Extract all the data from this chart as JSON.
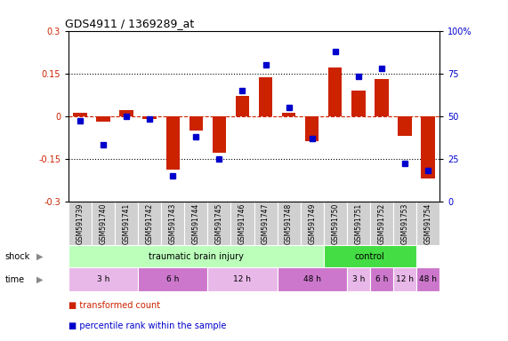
{
  "title": "GDS4911 / 1369289_at",
  "samples": [
    "GSM591739",
    "GSM591740",
    "GSM591741",
    "GSM591742",
    "GSM591743",
    "GSM591744",
    "GSM591745",
    "GSM591746",
    "GSM591747",
    "GSM591748",
    "GSM591749",
    "GSM591750",
    "GSM591751",
    "GSM591752",
    "GSM591753",
    "GSM591754"
  ],
  "red_bars": [
    0.01,
    -0.02,
    0.02,
    -0.01,
    -0.19,
    -0.05,
    -0.13,
    0.07,
    0.135,
    0.01,
    -0.09,
    0.17,
    0.09,
    0.13,
    -0.07,
    -0.22
  ],
  "blue_dots": [
    47,
    33,
    50,
    48,
    15,
    38,
    25,
    65,
    80,
    55,
    37,
    88,
    73,
    78,
    22,
    18
  ],
  "ylim_left": [
    -0.3,
    0.3
  ],
  "ylim_right": [
    0,
    100
  ],
  "yticks_left": [
    -0.3,
    -0.15,
    0.0,
    0.15,
    0.3
  ],
  "yticks_right": [
    0,
    25,
    50,
    75,
    100
  ],
  "hlines": [
    0.15,
    0.0,
    -0.15
  ],
  "red_color": "#cc2200",
  "blue_color": "#0000cc",
  "shock_groups": [
    {
      "label": "traumatic brain injury",
      "start": 0,
      "end": 11,
      "color": "#bbffbb"
    },
    {
      "label": "control",
      "start": 11,
      "end": 15,
      "color": "#44dd44"
    }
  ],
  "time_groups": [
    {
      "label": "3 h",
      "start": 0,
      "end": 3,
      "color": "#e8b8e8"
    },
    {
      "label": "6 h",
      "start": 3,
      "end": 6,
      "color": "#cc77cc"
    },
    {
      "label": "12 h",
      "start": 6,
      "end": 9,
      "color": "#e8b8e8"
    },
    {
      "label": "48 h",
      "start": 9,
      "end": 12,
      "color": "#cc77cc"
    },
    {
      "label": "3 h",
      "start": 12,
      "end": 13,
      "color": "#e8b8e8"
    },
    {
      "label": "6 h",
      "start": 13,
      "end": 14,
      "color": "#cc77cc"
    },
    {
      "label": "12 h",
      "start": 14,
      "end": 15,
      "color": "#e8b8e8"
    },
    {
      "label": "48 h",
      "start": 15,
      "end": 16,
      "color": "#cc77cc"
    }
  ],
  "shock_label": "shock",
  "time_label": "time",
  "legend1": "transformed count",
  "legend2": "percentile rank within the sample",
  "n_samples": 16,
  "bar_width": 0.6,
  "sample_bg": "#d0d0d0",
  "sample_border": "#ffffff"
}
